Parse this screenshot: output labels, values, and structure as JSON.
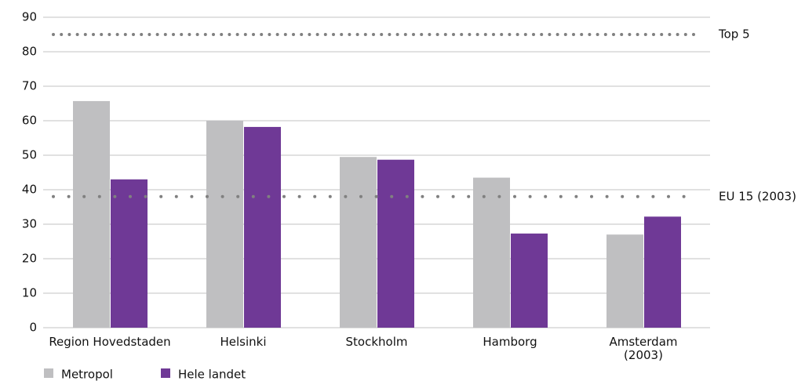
{
  "chart_data": {
    "type": "bar",
    "categories": [
      "Region Hovedstaden",
      "Helsinki",
      "Stockholm",
      "Hamborg",
      "Amsterdam\n(2003)"
    ],
    "series": [
      {
        "name": "Metropol",
        "color": "#bfbfc1",
        "values": [
          65.7,
          60,
          49.5,
          43.5,
          27
        ]
      },
      {
        "name": "Hele landet",
        "color": "#6f3996",
        "values": [
          43,
          58.2,
          48.7,
          27.3,
          32.2
        ]
      }
    ],
    "ylim": [
      0,
      90
    ],
    "yticks": [
      0,
      10,
      20,
      30,
      40,
      50,
      60,
      70,
      80,
      90
    ],
    "grid": true,
    "reference_lines": [
      {
        "label": "Top 5",
        "value": 85,
        "color": "#808080"
      },
      {
        "label": "EU 15 (2003)",
        "value": 38,
        "color": "#808080"
      }
    ],
    "legend": "bottom-left"
  }
}
